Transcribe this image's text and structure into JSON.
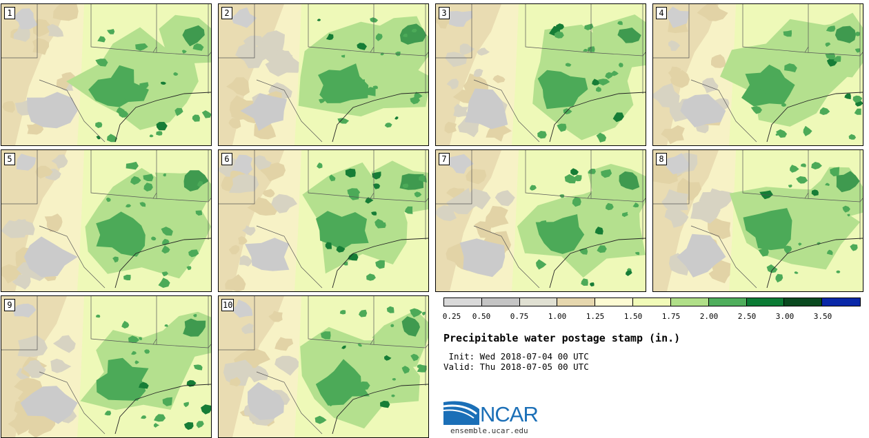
{
  "members": [
    "1",
    "2",
    "3",
    "4",
    "5",
    "6",
    "7",
    "8",
    "9",
    "10"
  ],
  "legend": {
    "colors": [
      "#d9d9d9",
      "#c4c4c4",
      "#e0e0d2",
      "#e6d7ae",
      "#fdfbd3",
      "#f1fbb8",
      "#b0df88",
      "#4fae5c",
      "#0c7c35",
      "#0a4a1f",
      "#0a28a8"
    ],
    "ticks": [
      "0.25",
      "0.50",
      "0.75",
      "1.00",
      "1.25",
      "1.50",
      "1.75",
      "2.00",
      "2.50",
      "3.00",
      "3.50"
    ]
  },
  "title": "Precipitable water postage stamp (in.)",
  "init": " Init: Wed 2018-07-04 00 UTC",
  "valid": "Valid: Thu 2018-07-05 00 UTC",
  "logo": {
    "text": "NCAR",
    "credit": "ensemble.ucar.edu"
  }
}
